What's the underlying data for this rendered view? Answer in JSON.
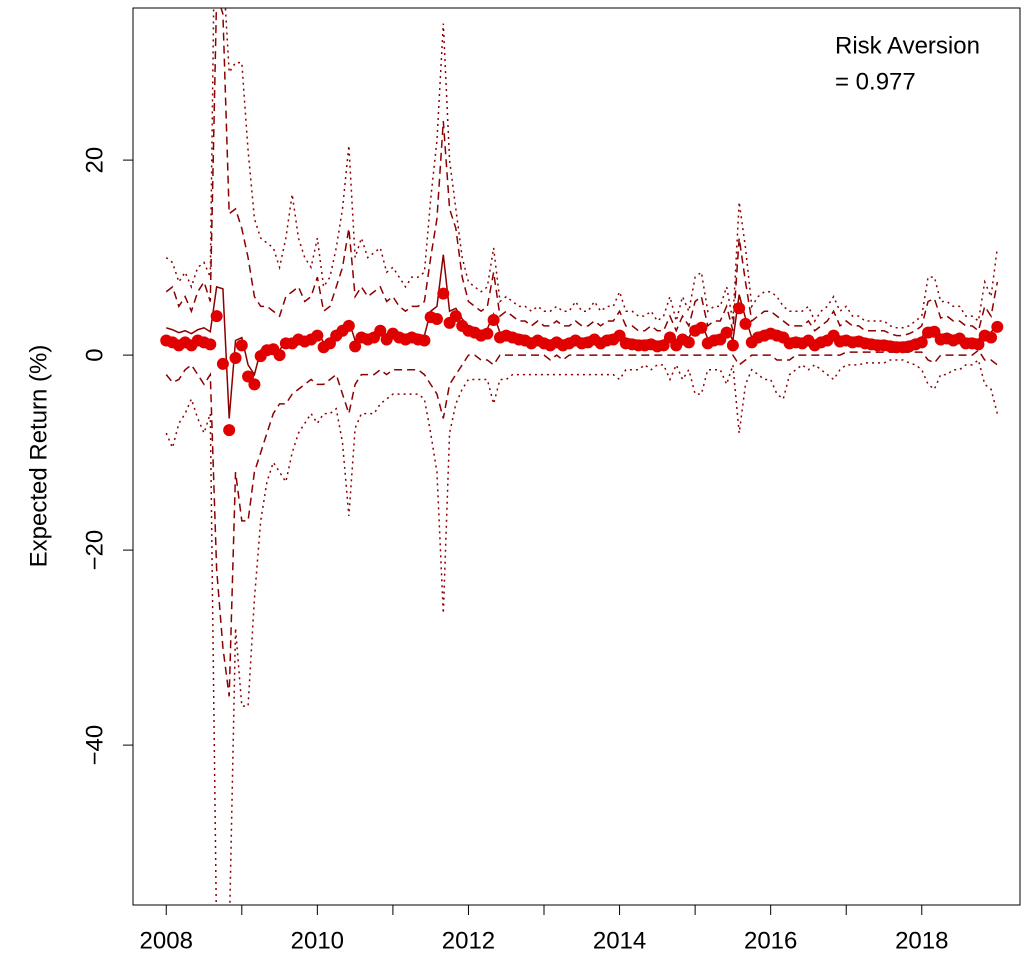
{
  "chart_data": {
    "type": "line",
    "ylabel": "Expected Return (%)",
    "annotation": [
      "Risk Aversion",
      "= 0.977"
    ],
    "xlim": [
      2007.56,
      2019.3
    ],
    "xticks": [
      2008,
      2010,
      2012,
      2014,
      2016,
      2018
    ],
    "xminor_ticks": [
      2009,
      2011,
      2013,
      2015,
      2017
    ],
    "ylim": [
      -56.4,
      35.6
    ],
    "yticks": [
      {
        "value": -40,
        "label": "−40"
      },
      {
        "value": -20,
        "label": "−20"
      },
      0,
      20
    ],
    "grid": false,
    "x": [
      2008,
      2008.083,
      2008.167,
      2008.25,
      2008.333,
      2008.417,
      2008.5,
      2008.583,
      2008.667,
      2008.75,
      2008.833,
      2008.917,
      2009,
      2009.083,
      2009.167,
      2009.25,
      2009.333,
      2009.417,
      2009.5,
      2009.583,
      2009.667,
      2009.75,
      2009.833,
      2009.917,
      2010,
      2010.083,
      2010.167,
      2010.25,
      2010.333,
      2010.417,
      2010.5,
      2010.583,
      2010.667,
      2010.75,
      2010.833,
      2010.917,
      2011,
      2011.083,
      2011.167,
      2011.25,
      2011.333,
      2011.417,
      2011.5,
      2011.583,
      2011.667,
      2011.75,
      2011.833,
      2011.917,
      2012,
      2012.083,
      2012.167,
      2012.25,
      2012.333,
      2012.417,
      2012.5,
      2012.583,
      2012.667,
      2012.75,
      2012.833,
      2012.917,
      2013,
      2013.083,
      2013.167,
      2013.25,
      2013.333,
      2013.417,
      2013.5,
      2013.583,
      2013.667,
      2013.75,
      2013.833,
      2013.917,
      2014,
      2014.083,
      2014.167,
      2014.25,
      2014.333,
      2014.417,
      2014.5,
      2014.583,
      2014.667,
      2014.75,
      2014.833,
      2014.917,
      2015,
      2015.083,
      2015.167,
      2015.25,
      2015.333,
      2015.417,
      2015.5,
      2015.583,
      2015.667,
      2015.75,
      2015.833,
      2015.917,
      2016,
      2016.083,
      2016.167,
      2016.25,
      2016.333,
      2016.417,
      2016.5,
      2016.583,
      2016.667,
      2016.75,
      2016.833,
      2016.917,
      2017,
      2017.083,
      2017.167,
      2017.25,
      2017.333,
      2017.417,
      2017.5,
      2017.583,
      2017.667,
      2017.75,
      2017.833,
      2017.917,
      2018,
      2018.083,
      2018.167,
      2018.25,
      2018.333,
      2018.417,
      2018.5,
      2018.583,
      2018.667,
      2018.75,
      2018.833,
      2018.917,
      2019
    ],
    "series": [
      {
        "style": "dotted",
        "color": "#8b0000",
        "values": [
          10,
          9.5,
          7.5,
          8.5,
          7,
          9,
          9.5,
          8,
          60,
          40,
          29,
          30,
          30,
          21,
          14,
          12,
          11.5,
          11,
          9,
          12,
          16.5,
          12,
          10,
          9,
          12,
          7,
          8,
          11,
          15,
          21.5,
          10,
          12,
          10,
          10.5,
          11,
          8.5,
          9,
          8,
          7,
          8,
          8,
          8.5,
          16,
          22,
          34,
          20,
          15,
          10,
          7.5,
          7,
          6.5,
          7,
          11,
          5.5,
          6,
          5.5,
          5,
          5,
          4.5,
          5,
          4.5,
          4.5,
          5,
          4.5,
          4.5,
          5.5,
          4.5,
          4.5,
          5.5,
          4.5,
          5,
          5,
          6.5,
          4.5,
          4.5,
          4,
          4,
          4.5,
          3.5,
          4,
          6,
          3.5,
          6,
          4.5,
          8,
          8.5,
          4.5,
          5,
          5,
          7,
          3.5,
          15.7,
          11,
          5,
          6,
          6.5,
          6.5,
          6,
          5,
          4.5,
          4.5,
          4.5,
          5,
          3.5,
          4.5,
          5,
          6,
          4.5,
          5,
          4,
          4,
          3.5,
          3.5,
          3.5,
          3.5,
          3,
          2.8,
          2.8,
          3,
          3.5,
          4,
          8,
          8,
          5.5,
          5.5,
          5,
          5,
          4,
          4,
          3.5,
          7.5,
          6,
          11
        ]
      },
      {
        "style": "dotted",
        "color": "#8b0000",
        "values": [
          -8,
          -9.5,
          -7,
          -6,
          -4.5,
          -6.5,
          -8,
          -6,
          -60,
          -60,
          -60,
          -28,
          -36,
          -36,
          -25,
          -17,
          -13,
          -11,
          -12,
          -13,
          -10,
          -8,
          -7,
          -6,
          -7,
          -6,
          -6,
          -5.5,
          -9,
          -16.5,
          -7.5,
          -6,
          -6,
          -6,
          -5,
          -4.5,
          -4,
          -4,
          -4,
          -4,
          -4,
          -4.5,
          -8,
          -12,
          -26.5,
          -8,
          -5,
          -3.5,
          -2.5,
          -2.5,
          -2.5,
          -2.5,
          -5,
          -2.5,
          -2.5,
          -2,
          -2,
          -2,
          -2,
          -2,
          -2,
          -2,
          -2,
          -2,
          -2,
          -2,
          -2,
          -2,
          -2,
          -2,
          -2,
          -2,
          -2.5,
          -1.5,
          -1.5,
          -1.5,
          -1,
          -1.5,
          -1,
          -1,
          -2.5,
          -1,
          -2.5,
          -1.5,
          -4,
          -4,
          -1.5,
          -1.5,
          -1.5,
          -3,
          -1,
          -8,
          -3,
          -1.5,
          -2,
          -2.5,
          -2.5,
          -4,
          -4.5,
          -2,
          -1.5,
          -1,
          -1.5,
          -1,
          -1.5,
          -2,
          -2.5,
          -1.5,
          -1,
          -1,
          -1,
          -0.8,
          -0.8,
          -0.8,
          -0.8,
          -0.5,
          -0.5,
          -0.5,
          -0.8,
          -1,
          -1.5,
          -3,
          -3.5,
          -2,
          -2,
          -1.5,
          -1.5,
          -1,
          -1,
          -0.5,
          -3,
          -3.5,
          -6
        ]
      },
      {
        "style": "dashed",
        "color": "#8b0000",
        "values": [
          6.5,
          7,
          5,
          6,
          4.5,
          6.5,
          7.5,
          5.5,
          37,
          35,
          14.5,
          15,
          13,
          10,
          6,
          5,
          5,
          4.5,
          4,
          6,
          6.5,
          7,
          5.5,
          6,
          8,
          4.5,
          5,
          7,
          9,
          13,
          6,
          7,
          6,
          6.5,
          7,
          5.5,
          6,
          5,
          4.5,
          5,
          5,
          5.5,
          10,
          14,
          24,
          15,
          13,
          8,
          5.5,
          5,
          4.5,
          5,
          8.5,
          4,
          4.5,
          4,
          3.5,
          3.5,
          3,
          3.5,
          3,
          3,
          3.5,
          3,
          3,
          3.5,
          3,
          3,
          3.5,
          3,
          3.5,
          3.5,
          4.5,
          3,
          3,
          2.5,
          2.5,
          3,
          2.5,
          2.5,
          4,
          2.5,
          4,
          3,
          5.5,
          6,
          3,
          3.5,
          3.5,
          5,
          2.5,
          12,
          7.5,
          3.5,
          4,
          4.5,
          4.5,
          4,
          3.5,
          3,
          3,
          3,
          3.5,
          2.5,
          3,
          3.5,
          4.5,
          3,
          3.5,
          3,
          3,
          2.5,
          2.5,
          2.5,
          2.5,
          2.2,
          2,
          2,
          2.2,
          2.5,
          3,
          5.5,
          5.8,
          3.8,
          4,
          3.5,
          3.5,
          3,
          3,
          2.5,
          5,
          4,
          7.5
        ]
      },
      {
        "style": "dashed",
        "color": "#8b0000",
        "values": [
          -2,
          -2.8,
          -2.5,
          -1.5,
          -1,
          -2,
          -3,
          -2,
          -22,
          -30,
          -35,
          -12,
          -17,
          -17,
          -12,
          -10,
          -8,
          -6,
          -5,
          -5,
          -4,
          -3.5,
          -3,
          -2.5,
          -3,
          -3,
          -2.5,
          -2,
          -4,
          -6,
          -3,
          -2,
          -2,
          -2,
          -1.5,
          -2,
          -1.5,
          -1.5,
          -1.5,
          -1.5,
          -1.5,
          -2,
          -3,
          -4,
          -6.5,
          -3,
          -2,
          -1,
          0,
          0,
          -0.5,
          -0.5,
          -1,
          0,
          0,
          0,
          0,
          0,
          0,
          0,
          0,
          -0.5,
          0,
          -0.5,
          0,
          0,
          0,
          0,
          0,
          0,
          0,
          0,
          0,
          0,
          0,
          0,
          0,
          0,
          0,
          0,
          0,
          0,
          0,
          0,
          0,
          0,
          0,
          0,
          0,
          0,
          0,
          -1,
          -0.5,
          0,
          0,
          0,
          0,
          -0.5,
          -0.5,
          -0.5,
          0,
          0,
          0,
          0,
          0,
          0,
          0,
          0,
          0.3,
          0.3,
          0.3,
          0.3,
          0.3,
          0.3,
          0.3,
          0.3,
          0.3,
          0.3,
          0.3,
          0.3,
          0.3,
          -0.5,
          -0.8,
          0,
          0,
          0,
          0,
          0,
          0,
          0.5,
          -0.5,
          -0.5,
          -1
        ]
      },
      {
        "style": "solid",
        "color": "#8b0000",
        "values": [
          2.8,
          2.6,
          2.3,
          2.5,
          2.2,
          2.6,
          2.8,
          2.4,
          7,
          6.8,
          -6.5,
          1.5,
          1.8,
          -1,
          -2,
          0.5,
          1,
          1,
          0.5,
          1.5,
          1.6,
          2,
          1.8,
          2,
          2.4,
          1.3,
          1.7,
          2.5,
          3,
          3.5,
          1.5,
          2.3,
          2.1,
          2.3,
          3,
          2.1,
          2.7,
          2.3,
          2.1,
          2.3,
          2.1,
          2,
          4.5,
          5,
          10.3,
          4.5,
          4.8,
          3.7,
          3,
          2.8,
          2.5,
          2.7,
          4.2,
          2.3,
          2.5,
          2.3,
          2.1,
          2,
          1.7,
          2,
          1.7,
          1.5,
          1.8,
          1.5,
          1.7,
          2,
          1.7,
          1.8,
          2.1,
          1.7,
          2,
          2.1,
          2.5,
          1.7,
          1.6,
          1.5,
          1.5,
          1.6,
          1.4,
          1.5,
          2.3,
          1.5,
          2.1,
          1.8,
          3,
          3.3,
          1.7,
          2,
          2.1,
          2.8,
          1.5,
          6.2,
          3.8,
          1.8,
          2.3,
          2.5,
          2.7,
          2.5,
          2.3,
          1.7,
          1.8,
          1.7,
          2,
          1.5,
          1.8,
          2,
          2.5,
          1.9,
          2,
          1.8,
          1.9,
          1.7,
          1.6,
          1.5,
          1.5,
          1.4,
          1.3,
          1.3,
          1.4,
          1.6,
          1.8,
          2.8,
          2.9,
          2.1,
          2.2,
          2,
          2.2,
          1.7,
          1.7,
          1.6,
          2.5,
          2.3,
          3.4
        ]
      },
      {
        "style": "points",
        "color": "#e00000",
        "values": [
          1.5,
          1.3,
          1,
          1.3,
          1,
          1.5,
          1.3,
          1.1,
          4,
          -0.9,
          -7.7,
          -0.3,
          1,
          -2.2,
          -3,
          -0.1,
          0.5,
          0.6,
          0,
          1.2,
          1.2,
          1.6,
          1.4,
          1.6,
          2,
          0.8,
          1.2,
          2,
          2.5,
          3,
          0.9,
          1.8,
          1.6,
          1.8,
          2.5,
          1.6,
          2.2,
          1.8,
          1.6,
          1.8,
          1.6,
          1.5,
          3.9,
          3.7,
          6.3,
          3.3,
          4,
          3,
          2.5,
          2.3,
          2,
          2.2,
          3.6,
          1.8,
          2,
          1.8,
          1.6,
          1.5,
          1.2,
          1.5,
          1.2,
          1,
          1.3,
          1,
          1.2,
          1.5,
          1.2,
          1.3,
          1.6,
          1.2,
          1.5,
          1.6,
          2,
          1.2,
          1.1,
          1,
          1,
          1.1,
          0.9,
          1,
          1.8,
          1,
          1.6,
          1.3,
          2.5,
          2.8,
          1.2,
          1.5,
          1.6,
          2.3,
          1,
          4.8,
          3.2,
          1.3,
          1.8,
          2,
          2.2,
          2,
          1.8,
          1.2,
          1.3,
          1.2,
          1.5,
          1,
          1.3,
          1.5,
          2,
          1.4,
          1.5,
          1.3,
          1.4,
          1.2,
          1.1,
          1,
          1,
          0.9,
          0.8,
          0.8,
          0.9,
          1.1,
          1.3,
          2.3,
          2.4,
          1.6,
          1.7,
          1.5,
          1.7,
          1.2,
          1.2,
          1.1,
          2,
          1.8,
          2.9
        ]
      }
    ]
  }
}
